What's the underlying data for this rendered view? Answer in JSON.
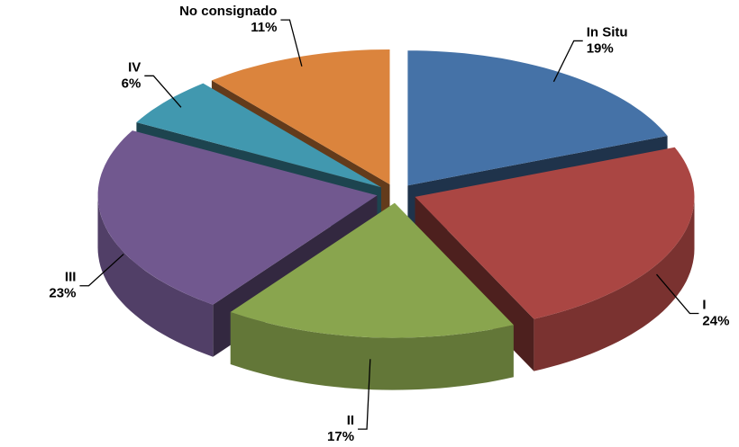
{
  "chart_data": {
    "type": "pie",
    "categories": [
      "In Situ",
      "I",
      "II",
      "III",
      "IV",
      "No consignado"
    ],
    "values": [
      19,
      24,
      17,
      23,
      6,
      11
    ],
    "value_labels": [
      "19%",
      "24%",
      "17%",
      "23%",
      "6%",
      "11%"
    ],
    "colors": [
      "#4572a7",
      "#aa4643",
      "#89a54e",
      "#71588f",
      "#4198af",
      "#db843d"
    ]
  }
}
